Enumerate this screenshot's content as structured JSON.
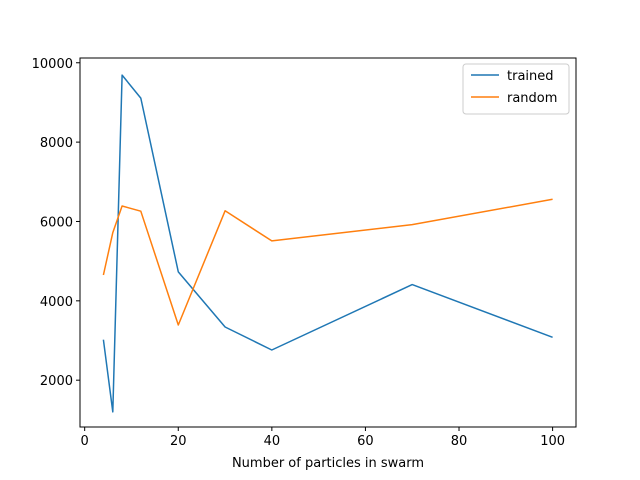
{
  "chart_data": {
    "type": "line",
    "title": "",
    "xlabel": "Number of particles in swarm",
    "ylabel": "",
    "xlim": [
      -1,
      105
    ],
    "ylim": [
      820,
      10120
    ],
    "x_ticks": [
      0,
      20,
      40,
      60,
      80,
      100
    ],
    "y_ticks": [
      2000,
      4000,
      6000,
      8000,
      10000
    ],
    "grid": false,
    "legend_position": "top-right",
    "series": [
      {
        "name": "trained",
        "color": "#1f77b4",
        "x": [
          4,
          6,
          8,
          12,
          20,
          30,
          40,
          70,
          100
        ],
        "y": [
          3020,
          1200,
          9690,
          9110,
          4730,
          3340,
          2760,
          4410,
          3080
        ]
      },
      {
        "name": "random",
        "color": "#ff7f0e",
        "x": [
          4,
          6,
          8,
          12,
          20,
          30,
          40,
          70,
          100
        ],
        "y": [
          4650,
          5720,
          6390,
          6260,
          3390,
          6270,
          5510,
          5920,
          6560
        ]
      }
    ]
  }
}
